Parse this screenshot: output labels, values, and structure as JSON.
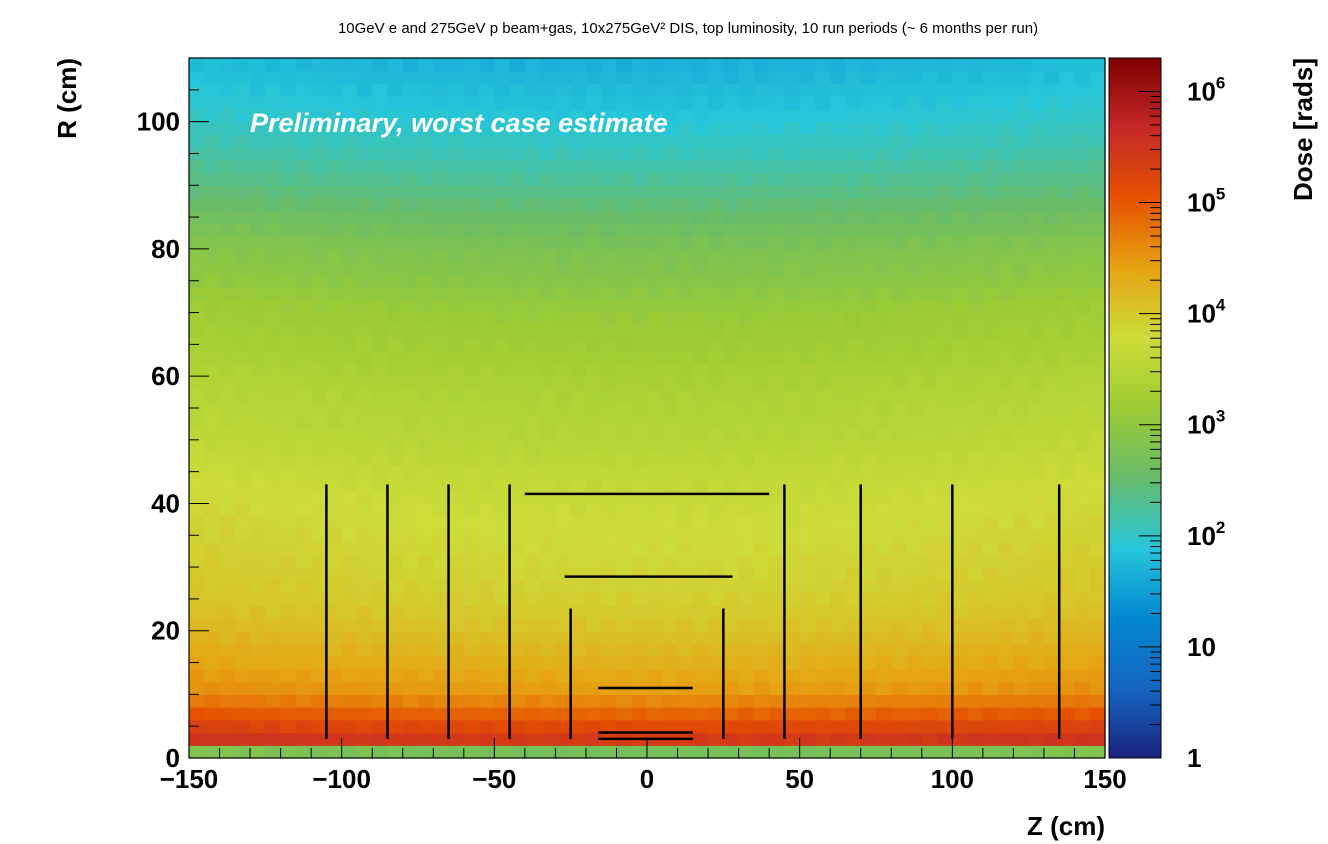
{
  "chart_data": {
    "type": "heatmap",
    "title": "10GeV e and 275GeV p beam+gas, 10x275GeV² DIS, top luminosity, 10 run periods (~ 6 months per run)",
    "annotation": "Preliminary, worst case estimate",
    "xlabel": "Z (cm)",
    "ylabel": "R (cm)",
    "zlabel": "Dose [rads]",
    "xlim": [
      -150,
      150
    ],
    "ylim": [
      0,
      110
    ],
    "zlim": [
      1,
      2000000
    ],
    "z_scale": "log",
    "x_ticks": [
      "−150",
      "−100",
      "−50",
      "0",
      "50",
      "100",
      "150"
    ],
    "x_tick_values": [
      -150,
      -100,
      -50,
      0,
      50,
      100,
      150
    ],
    "y_ticks": [
      "0",
      "20",
      "40",
      "60",
      "80",
      "100"
    ],
    "y_tick_values": [
      0,
      20,
      40,
      60,
      80,
      100
    ],
    "z_ticks": [
      {
        "value": 1,
        "base": "1",
        "exp": ""
      },
      {
        "value": 10,
        "base": "10",
        "exp": ""
      },
      {
        "value": 100,
        "base": "10",
        "exp": "2"
      },
      {
        "value": 1000,
        "base": "10",
        "exp": "3"
      },
      {
        "value": 10000,
        "base": "10",
        "exp": "4"
      },
      {
        "value": 100000,
        "base": "10",
        "exp": "5"
      },
      {
        "value": 1000000,
        "base": "10",
        "exp": "6"
      }
    ],
    "dose_profile_vs_R": {
      "R": [
        1,
        2,
        4,
        6,
        8,
        10,
        12,
        15,
        18,
        22,
        26,
        30,
        35,
        40,
        45,
        50,
        55,
        60,
        65,
        70,
        75,
        80,
        85,
        90,
        95,
        100,
        105,
        110
      ],
      "dose": [
        500,
        300000,
        200000,
        100000,
        60000,
        30000,
        25000,
        18000,
        14000,
        10000,
        8000,
        7000,
        6000,
        5000,
        4000,
        3000,
        2500,
        2000,
        1500,
        1200,
        800,
        600,
        350,
        200,
        120,
        80,
        60,
        45
      ]
    },
    "detector_lines": {
      "vertical": [
        {
          "z": -105,
          "r": [
            3,
            43
          ]
        },
        {
          "z": -85,
          "r": [
            3,
            43
          ]
        },
        {
          "z": -65,
          "r": [
            3,
            43
          ]
        },
        {
          "z": -45,
          "r": [
            3,
            43
          ]
        },
        {
          "z": -25,
          "r": [
            3,
            23.5
          ]
        },
        {
          "z": 25,
          "r": [
            3,
            23.5
          ]
        },
        {
          "z": 45,
          "r": [
            3,
            43
          ]
        },
        {
          "z": 70,
          "r": [
            3,
            43
          ]
        },
        {
          "z": 100,
          "r": [
            3,
            43
          ]
        },
        {
          "z": 135,
          "r": [
            3,
            43
          ]
        }
      ],
      "horizontal": [
        {
          "r": 41.5,
          "z": [
            -40,
            40
          ]
        },
        {
          "r": 28.5,
          "z": [
            -27,
            28
          ]
        },
        {
          "r": 11,
          "z": [
            -16,
            15
          ]
        },
        {
          "r": 4,
          "z": [
            -16,
            15
          ]
        },
        {
          "r": 3,
          "z": [
            -16,
            15
          ]
        }
      ]
    },
    "colors": [
      "#1a237e",
      "#1565c0",
      "#0288d1",
      "#26c6da",
      "#66bb6a",
      "#9ccc33",
      "#cddc39",
      "#e6a312",
      "#e65100",
      "#c62828",
      "#7f0000"
    ]
  }
}
